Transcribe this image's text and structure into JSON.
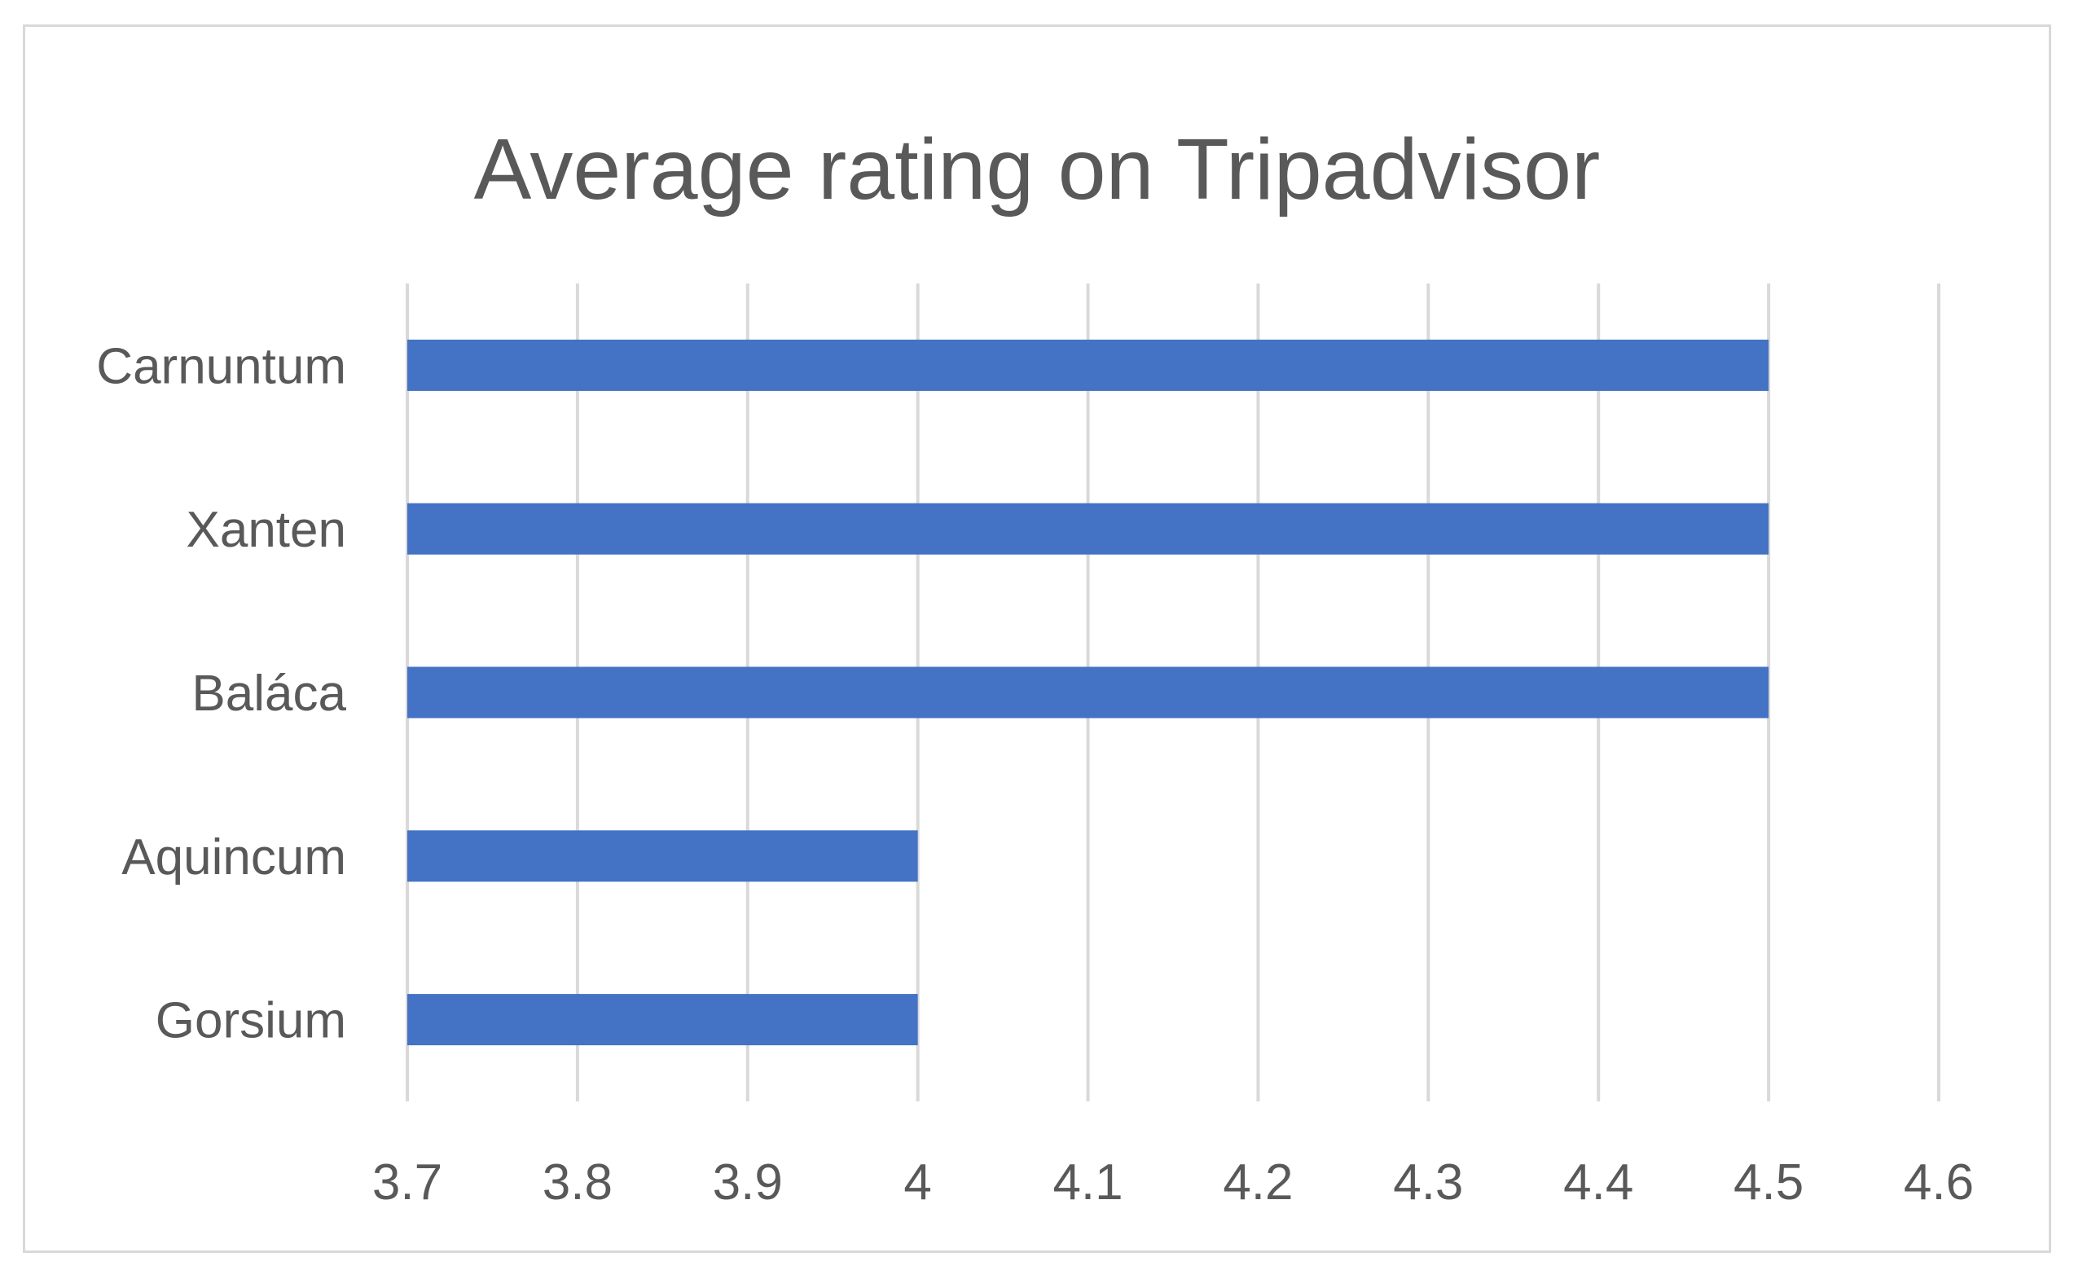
{
  "chart_data": {
    "type": "bar",
    "orientation": "horizontal",
    "title": "Average rating on Tripadvisor",
    "xlabel": "",
    "ylabel": "",
    "categories": [
      "Carnuntum",
      "Xanten",
      "Baláca",
      "Aquincum",
      "Gorsium"
    ],
    "values": [
      4.5,
      4.5,
      4.5,
      4.0,
      4.0
    ],
    "xlim": [
      3.7,
      4.6
    ],
    "xticks": [
      "3.7",
      "3.8",
      "3.9",
      "4",
      "4.1",
      "4.2",
      "4.3",
      "4.4",
      "4.5",
      "4.6"
    ],
    "grid": true,
    "legend": "none",
    "colors": {
      "bar": "#4472c4",
      "grid": "#d9d9d9",
      "text": "#595959",
      "frame": "#d9d9d9"
    }
  }
}
